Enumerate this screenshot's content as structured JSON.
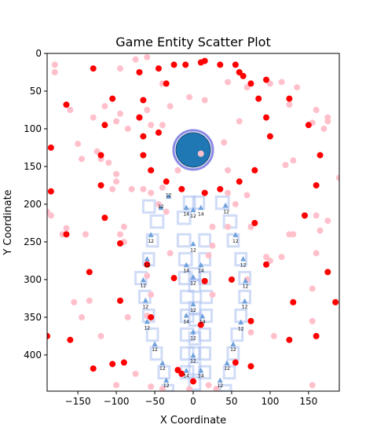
{
  "chart_data": {
    "type": "scatter",
    "title": "Game Entity Scatter Plot",
    "xlabel": "X Coordinate",
    "ylabel": "Y Coordinate",
    "xlim": [
      -190,
      190
    ],
    "ylim": [
      448,
      0
    ],
    "y_inverted": true,
    "grid": false,
    "x_ticks": [
      -150,
      -100,
      -50,
      0,
      50,
      100,
      150
    ],
    "y_ticks": [
      0,
      50,
      100,
      150,
      200,
      250,
      300,
      350,
      400
    ],
    "colors": {
      "red": "#ff0000",
      "pink": "#ffc0cb",
      "blue": "#1f77b4",
      "ring": "#8a8ae6",
      "guide": "#a9bff0",
      "tri": "#6fa1dc"
    },
    "series": [
      {
        "role": "red-markers",
        "points": [
          [
            -130,
            20
          ],
          [
            -105,
            60
          ],
          [
            -65,
            62
          ],
          [
            -70,
            85
          ],
          [
            -45,
            20
          ],
          [
            -25,
            15
          ],
          [
            -10,
            15
          ],
          [
            10,
            12
          ],
          [
            15,
            10
          ],
          [
            35,
            15
          ],
          [
            55,
            15
          ],
          [
            60,
            25
          ],
          [
            65,
            30
          ],
          [
            75,
            40
          ],
          [
            95,
            35
          ],
          [
            85,
            60
          ],
          [
            95,
            85
          ],
          [
            100,
            110
          ],
          [
            125,
            60
          ],
          [
            150,
            95
          ],
          [
            165,
            135
          ],
          [
            160,
            175
          ],
          [
            145,
            215
          ],
          [
            175,
            290
          ],
          [
            130,
            330
          ],
          [
            185,
            330
          ],
          [
            160,
            375
          ],
          [
            125,
            380
          ],
          [
            75,
            355
          ],
          [
            55,
            410
          ],
          [
            75,
            415
          ],
          [
            50,
            300
          ],
          [
            95,
            280
          ],
          [
            80,
            225
          ],
          [
            80,
            155
          ],
          [
            60,
            170
          ],
          [
            35,
            180
          ],
          [
            15,
            185
          ],
          [
            -15,
            180
          ],
          [
            -35,
            170
          ],
          [
            -55,
            155
          ],
          [
            -65,
            135
          ],
          [
            -65,
            110
          ],
          [
            -70,
            85
          ],
          [
            -120,
            135
          ],
          [
            -120,
            175
          ],
          [
            -115,
            95
          ],
          [
            -165,
            68
          ],
          [
            -185,
            125
          ],
          [
            -185,
            183
          ],
          [
            -165,
            240
          ],
          [
            -115,
            218
          ],
          [
            -95,
            252
          ],
          [
            -135,
            290
          ],
          [
            -95,
            328
          ],
          [
            -55,
            350
          ],
          [
            -25,
            298
          ],
          [
            -105,
            412
          ],
          [
            -90,
            410
          ],
          [
            -130,
            418
          ],
          [
            -160,
            380
          ],
          [
            -190,
            375
          ],
          [
            -60,
            280
          ],
          [
            -20,
            420
          ],
          [
            -15,
            425
          ],
          [
            0,
            435
          ],
          [
            10,
            360
          ],
          [
            15,
            302
          ],
          [
            -45,
            105
          ],
          [
            -70,
            25
          ],
          [
            -35,
            40
          ]
        ]
      },
      {
        "role": "pink-markers",
        "points": [
          [
            -180,
            15
          ],
          [
            -180,
            25
          ],
          [
            -75,
            8
          ],
          [
            -60,
            5
          ],
          [
            -40,
            40
          ],
          [
            -30,
            70
          ],
          [
            -5,
            58
          ],
          [
            15,
            62
          ],
          [
            45,
            38
          ],
          [
            70,
            45
          ],
          [
            100,
            40
          ],
          [
            115,
            38
          ],
          [
            135,
            45
          ],
          [
            125,
            68
          ],
          [
            155,
            92
          ],
          [
            175,
            85
          ],
          [
            175,
            90
          ],
          [
            170,
            100
          ],
          [
            160,
            75
          ],
          [
            120,
            148
          ],
          [
            130,
            142
          ],
          [
            60,
            90
          ],
          [
            40,
            118
          ],
          [
            45,
            155
          ],
          [
            45,
            185
          ],
          [
            70,
            188
          ],
          [
            75,
            230
          ],
          [
            55,
            200
          ],
          [
            95,
            270
          ],
          [
            100,
            275
          ],
          [
            125,
            240
          ],
          [
            130,
            240
          ],
          [
            160,
            215
          ],
          [
            165,
            235
          ],
          [
            175,
            222
          ],
          [
            160,
            265
          ],
          [
            155,
            312
          ],
          [
            155,
            355
          ],
          [
            155,
            440
          ],
          [
            115,
            270
          ],
          [
            105,
            375
          ],
          [
            75,
            370
          ],
          [
            25,
            320
          ],
          [
            25,
            255
          ],
          [
            -20,
            155
          ],
          [
            -40,
            178
          ],
          [
            -55,
            185
          ],
          [
            -45,
            200
          ],
          [
            -35,
            210
          ],
          [
            -30,
            265
          ],
          [
            -55,
            320
          ],
          [
            -60,
            348
          ],
          [
            -85,
            350
          ],
          [
            -90,
            250
          ],
          [
            -95,
            240
          ],
          [
            -90,
            230
          ],
          [
            -100,
            160
          ],
          [
            -110,
            145
          ],
          [
            -120,
            140
          ],
          [
            -125,
            130
          ],
          [
            -130,
            85
          ],
          [
            -115,
            70
          ],
          [
            -100,
            90
          ],
          [
            -95,
            80
          ],
          [
            -85,
            100
          ],
          [
            -60,
            75
          ],
          [
            -55,
            95
          ],
          [
            -40,
            95
          ],
          [
            -185,
            215
          ],
          [
            -170,
            240
          ],
          [
            -165,
            232
          ],
          [
            -155,
            330
          ],
          [
            -145,
            350
          ],
          [
            -135,
            328
          ],
          [
            -120,
            375
          ],
          [
            -100,
            440
          ],
          [
            -55,
            442
          ],
          [
            -75,
            425
          ],
          [
            -60,
            295
          ],
          [
            -105,
            180
          ],
          [
            -140,
            240
          ],
          [
            -100,
            170
          ],
          [
            -80,
            180
          ],
          [
            -65,
            180
          ],
          [
            20,
            268
          ],
          [
            25,
            230
          ],
          [
            45,
            230
          ],
          [
            70,
            300
          ],
          [
            30,
            445
          ],
          [
            -5,
            445
          ],
          [
            20,
            440
          ],
          [
            190,
            165
          ],
          [
            -190,
            210
          ],
          [
            -160,
            75
          ],
          [
            -95,
            20
          ],
          [
            -40,
            445
          ],
          [
            -145,
            140
          ],
          [
            -150,
            120
          ]
        ]
      }
    ],
    "player": {
      "x": 0,
      "y": 128,
      "color": "#1f77b4",
      "marker": {
        "x": 10,
        "y": 133,
        "color": "#ffc0cb"
      }
    },
    "rects": [
      [
        -65,
        195,
        15,
        16
      ],
      [
        -55,
        215,
        16,
        16
      ],
      [
        -60,
        240,
        14,
        16
      ],
      [
        -65,
        265,
        14,
        16
      ],
      [
        -75,
        290,
        14,
        16
      ],
      [
        -70,
        315,
        14,
        16
      ],
      [
        -65,
        340,
        14,
        16
      ],
      [
        -60,
        365,
        14,
        16
      ],
      [
        -55,
        390,
        14,
        16
      ],
      [
        -45,
        415,
        14,
        16
      ],
      [
        -40,
        440,
        14,
        8
      ],
      [
        -20,
        210,
        16,
        16
      ],
      [
        -20,
        240,
        16,
        16
      ],
      [
        -18,
        265,
        16,
        16
      ],
      [
        -18,
        290,
        16,
        16
      ],
      [
        -16,
        315,
        16,
        16
      ],
      [
        -16,
        340,
        16,
        16
      ],
      [
        -16,
        365,
        16,
        16
      ],
      [
        -16,
        390,
        16,
        16
      ],
      [
        -16,
        415,
        16,
        16
      ],
      [
        -12,
        190,
        14,
        16
      ],
      [
        0,
        190,
        14,
        16
      ],
      [
        -5,
        285,
        14,
        16
      ],
      [
        -5,
        300,
        14,
        16
      ],
      [
        -5,
        330,
        14,
        16
      ],
      [
        -5,
        345,
        14,
        16
      ],
      [
        -5,
        370,
        14,
        16
      ],
      [
        -5,
        390,
        14,
        16
      ],
      [
        -5,
        410,
        14,
        16
      ],
      [
        -5,
        430,
        14,
        16
      ],
      [
        30,
        190,
        16,
        16
      ],
      [
        40,
        215,
        16,
        16
      ],
      [
        45,
        240,
        14,
        16
      ],
      [
        55,
        265,
        14,
        16
      ],
      [
        60,
        290,
        14,
        16
      ],
      [
        60,
        315,
        14,
        16
      ],
      [
        55,
        340,
        14,
        16
      ],
      [
        50,
        365,
        14,
        16
      ],
      [
        45,
        390,
        14,
        16
      ],
      [
        40,
        415,
        14,
        16
      ],
      [
        35,
        440,
        14,
        8
      ],
      [
        8,
        240,
        14,
        16
      ],
      [
        8,
        265,
        14,
        16
      ],
      [
        8,
        290,
        14,
        16
      ],
      [
        10,
        315,
        14,
        16
      ],
      [
        10,
        340,
        14,
        16
      ],
      [
        8,
        365,
        14,
        16
      ],
      [
        8,
        390,
        14,
        16
      ],
      [
        8,
        415,
        14,
        16
      ]
    ],
    "annotations": [
      {
        "x": -42,
        "y": 205,
        "text": "12"
      },
      {
        "x": -32,
        "y": 190,
        "text": "12"
      },
      {
        "x": -9,
        "y": 215,
        "text": "14"
      },
      {
        "x": 10,
        "y": 215,
        "text": "14"
      },
      {
        "x": 0,
        "y": 218,
        "text": "12"
      },
      {
        "x": 43,
        "y": 212,
        "text": "12"
      },
      {
        "x": -55,
        "y": 251,
        "text": "12"
      },
      {
        "x": 55,
        "y": 251,
        "text": "12"
      },
      {
        "x": 0,
        "y": 263,
        "text": "12"
      },
      {
        "x": -60,
        "y": 283,
        "text": "12"
      },
      {
        "x": -9,
        "y": 290,
        "text": "14"
      },
      {
        "x": 10,
        "y": 290,
        "text": "14"
      },
      {
        "x": 65,
        "y": 283,
        "text": "12"
      },
      {
        "x": -65,
        "y": 310,
        "text": "12"
      },
      {
        "x": 0,
        "y": 307,
        "text": "12"
      },
      {
        "x": 68,
        "y": 311,
        "text": "12"
      },
      {
        "x": -62,
        "y": 338,
        "text": "12"
      },
      {
        "x": 0,
        "y": 343,
        "text": "12"
      },
      {
        "x": 67,
        "y": 338,
        "text": "12"
      },
      {
        "x": -9,
        "y": 358,
        "text": "14"
      },
      {
        "x": 12,
        "y": 358,
        "text": "14"
      },
      {
        "x": -60,
        "y": 366,
        "text": "12"
      },
      {
        "x": 62,
        "y": 367,
        "text": "12"
      },
      {
        "x": 0,
        "y": 380,
        "text": "12"
      },
      {
        "x": -50,
        "y": 395,
        "text": "12"
      },
      {
        "x": 52,
        "y": 395,
        "text": "12"
      },
      {
        "x": 0,
        "y": 410,
        "text": "12"
      },
      {
        "x": -40,
        "y": 420,
        "text": "12"
      },
      {
        "x": 44,
        "y": 420,
        "text": "12"
      },
      {
        "x": -9,
        "y": 430,
        "text": "14"
      },
      {
        "x": 10,
        "y": 430,
        "text": "14"
      },
      {
        "x": -35,
        "y": 443,
        "text": "12"
      },
      {
        "x": 35,
        "y": 443,
        "text": "12"
      }
    ],
    "triangles": [
      [
        -42,
        205
      ],
      [
        -32,
        190
      ],
      [
        -9,
        205
      ],
      [
        10,
        205
      ],
      [
        0,
        208
      ],
      [
        42,
        202
      ],
      [
        -55,
        241
      ],
      [
        55,
        241
      ],
      [
        0,
        253
      ],
      [
        -60,
        273
      ],
      [
        -9,
        281
      ],
      [
        10,
        281
      ],
      [
        65,
        273
      ],
      [
        -65,
        301
      ],
      [
        0,
        297
      ],
      [
        68,
        302
      ],
      [
        -62,
        328
      ],
      [
        0,
        333
      ],
      [
        67,
        329
      ],
      [
        -9,
        348
      ],
      [
        12,
        349
      ],
      [
        -60,
        356
      ],
      [
        62,
        357
      ],
      [
        0,
        370
      ],
      [
        -50,
        386
      ],
      [
        52,
        386
      ],
      [
        0,
        401
      ],
      [
        -40,
        411
      ],
      [
        44,
        411
      ],
      [
        -9,
        421
      ],
      [
        10,
        421
      ],
      [
        -35,
        434
      ],
      [
        35,
        434
      ]
    ]
  }
}
